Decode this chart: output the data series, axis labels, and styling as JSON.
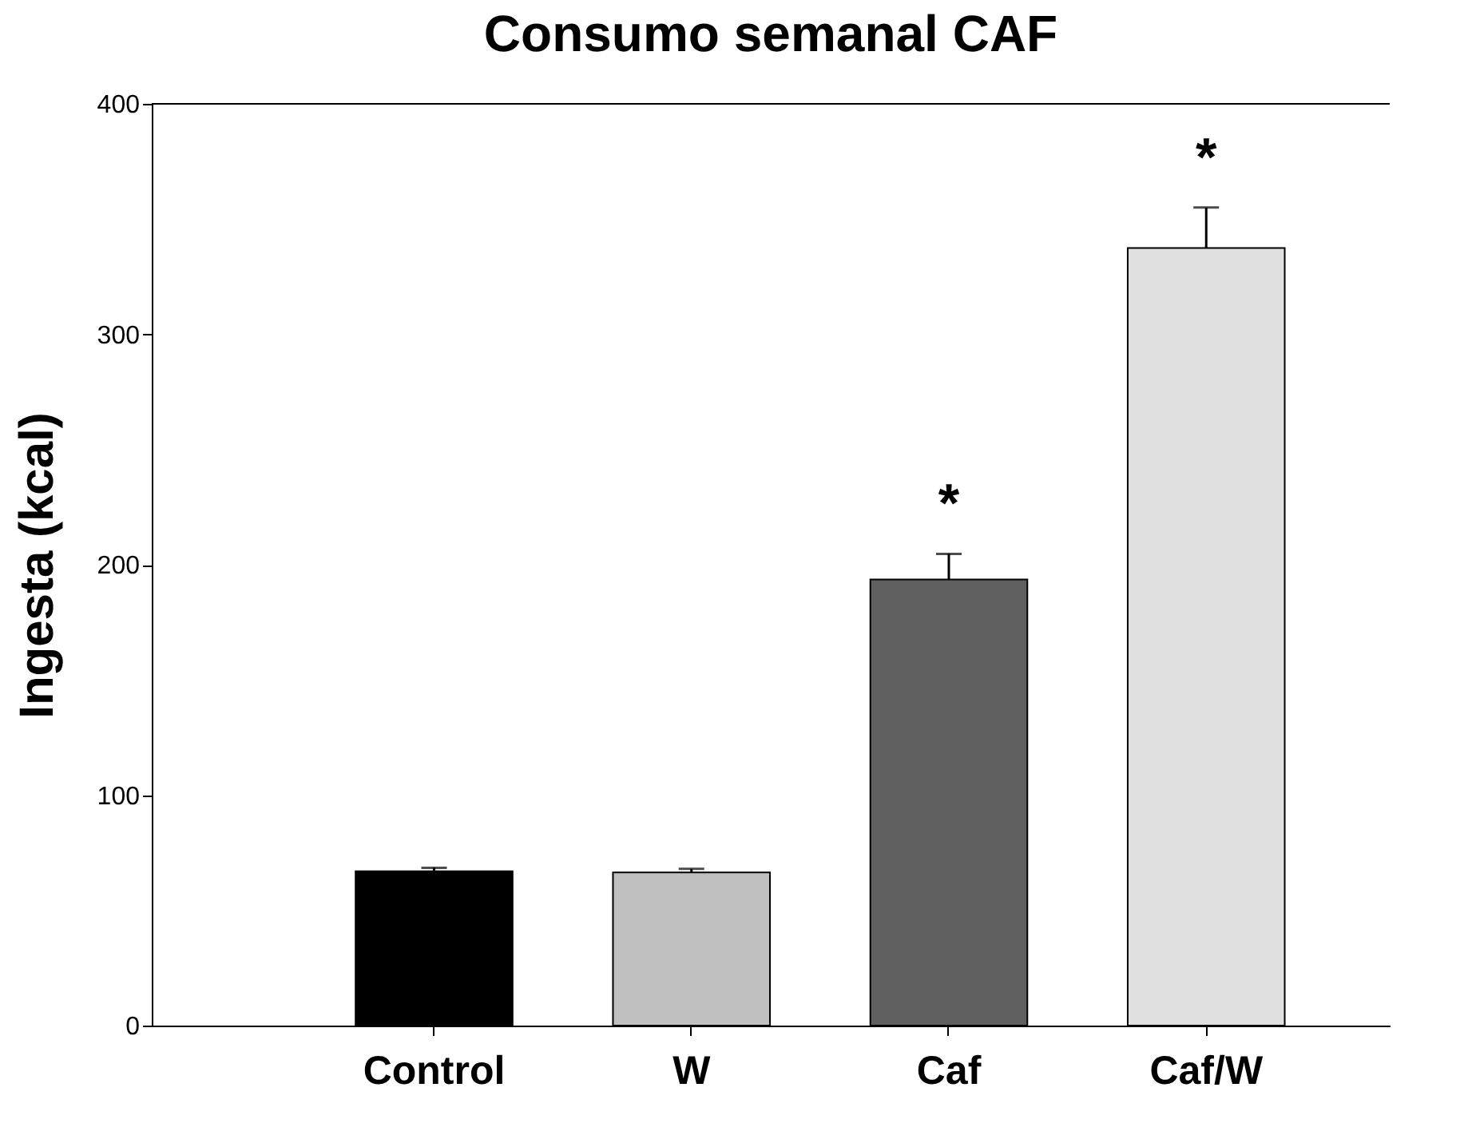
{
  "chart_data": {
    "type": "bar",
    "title": "Consumo semanal CAF",
    "ylabel": "Ingesta (kcal)",
    "categories": [
      "Control",
      "W",
      "Caf",
      "Caf/W"
    ],
    "values": [
      67,
      66.5,
      193.6,
      337.4
    ],
    "colors": [
      "#000000",
      "#c0c0c0",
      "#606060",
      "#e0e0e0"
    ],
    "errors": [
      1.5,
      1.5,
      11.1,
      17.6
    ],
    "ylim": [
      0,
      400
    ],
    "yticks": [
      0,
      100,
      200,
      300,
      400
    ],
    "annotations": [
      "*",
      "*"
    ],
    "grid": false
  }
}
